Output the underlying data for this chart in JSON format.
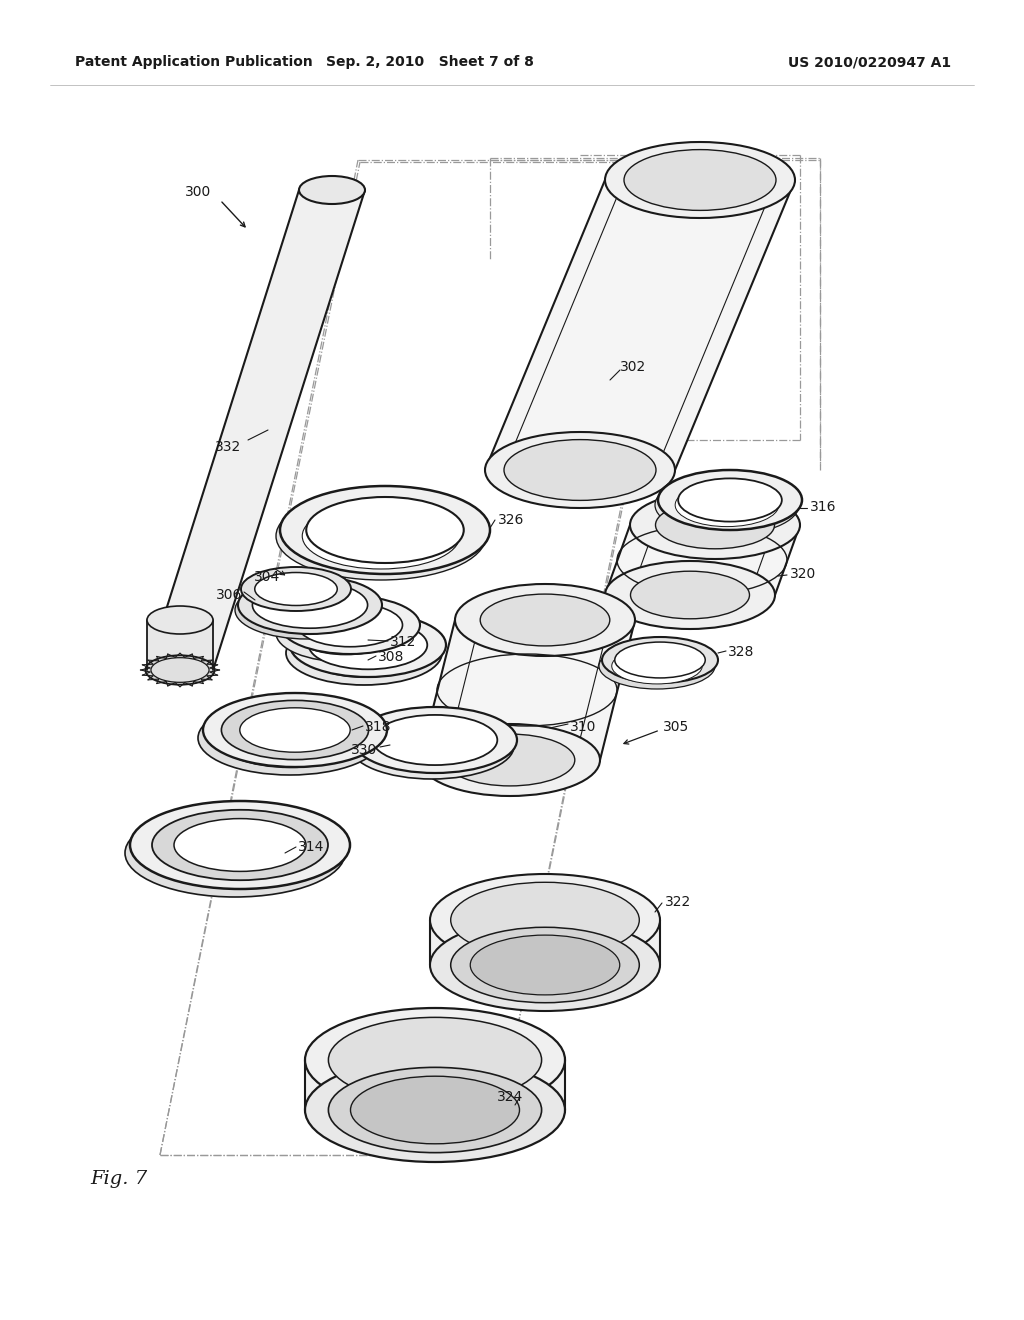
{
  "header_left": "Patent Application Publication",
  "header_center": "Sep. 2, 2010   Sheet 7 of 8",
  "header_right": "US 2010/0220947 A1",
  "figure_label": "Fig. 7",
  "bg": "#ffffff",
  "lc": "#1a1a1a",
  "dlc": "#888888"
}
